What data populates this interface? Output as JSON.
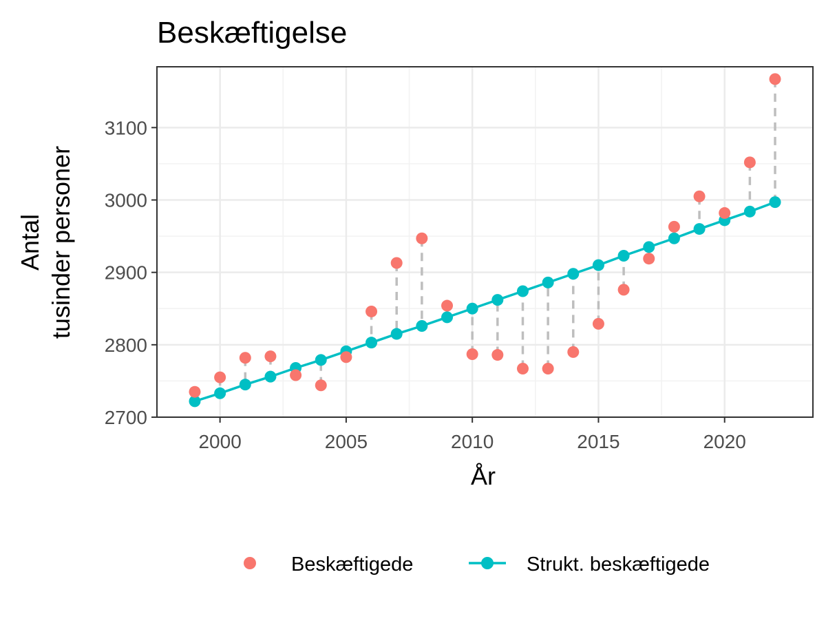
{
  "chart_data": {
    "type": "line",
    "title": "Beskæftigelse",
    "xlabel": "År",
    "ylabel_lines": [
      "Antal",
      "tusinder personer"
    ],
    "xlim": [
      1997.5,
      2023.5
    ],
    "ylim": [
      2700,
      3184
    ],
    "xticks": [
      2000,
      2005,
      2010,
      2015,
      2020
    ],
    "yticks": [
      2700,
      2800,
      2900,
      3000,
      3100
    ],
    "x": [
      1999,
      2000,
      2001,
      2002,
      2003,
      2004,
      2005,
      2006,
      2007,
      2008,
      2009,
      2010,
      2011,
      2012,
      2013,
      2014,
      2015,
      2016,
      2017,
      2018,
      2019,
      2020,
      2021,
      2022
    ],
    "series": [
      {
        "name": "Beskæftigede",
        "style": "points",
        "color": "#F8766D",
        "values": [
          2735,
          2755,
          2782,
          2784,
          2758,
          2744,
          2783,
          2846,
          2913,
          2947,
          2854,
          2787,
          2786,
          2767,
          2767,
          2790,
          2829,
          2876,
          2919,
          2963,
          3005,
          2982,
          3052,
          3167
        ]
      },
      {
        "name": "Strukt. beskæftigede",
        "style": "line+points",
        "color": "#00BFC4",
        "values": [
          2722,
          2733,
          2745,
          2756,
          2768,
          2779,
          2791,
          2803,
          2815,
          2826,
          2838,
          2850,
          2862,
          2874,
          2886,
          2898,
          2910,
          2923,
          2935,
          2947,
          2960,
          2972,
          2984,
          2997
        ]
      }
    ],
    "gap_line_color": "#BEBEBE",
    "grid": true,
    "legend_position": "bottom"
  }
}
